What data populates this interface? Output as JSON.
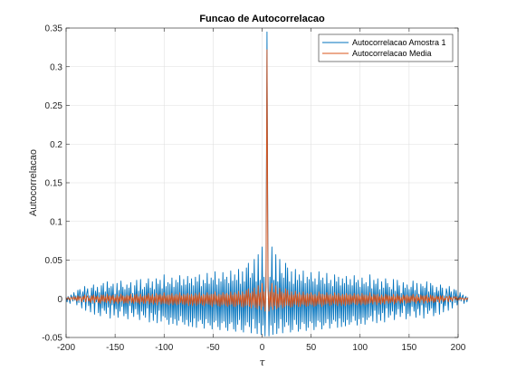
{
  "chart_data": {
    "type": "line",
    "title": "Funcao de Autocorrelacao",
    "xlabel": "τ",
    "ylabel": "Autocorrelacao",
    "xlim": [
      -200,
      200
    ],
    "ylim": [
      -0.05,
      0.35
    ],
    "xticks": [
      -200,
      -150,
      -100,
      -50,
      0,
      50,
      100,
      150,
      200
    ],
    "xtick_labels": [
      "-200",
      "-150",
      "-100",
      "-50",
      "0",
      "50",
      "100",
      "150",
      "200"
    ],
    "yticks": [
      -0.05,
      0,
      0.05,
      0.1,
      0.15,
      0.2,
      0.25,
      0.3,
      0.35
    ],
    "ytick_labels": [
      "-0.05",
      "0",
      "0.05",
      "0.1",
      "0.15",
      "0.2",
      "0.25",
      "0.3",
      "0.35"
    ],
    "grid": true,
    "legend_position": "top-right",
    "series": [
      {
        "name": "Autocorrelacao Amostra 1",
        "color": "#0072BD",
        "x_start": -200,
        "x_step": 1,
        "values": [
          0.002,
          -0.004,
          0.003,
          0.001,
          -0.006,
          0.005,
          0.002,
          -0.003,
          0.008,
          -0.002,
          0.004,
          -0.008,
          0.011,
          -0.005,
          0.012,
          0.003,
          -0.012,
          0.009,
          -0.004,
          0.016,
          -0.015,
          0.006,
          0.013,
          -0.009,
          0.004,
          -0.017,
          0.014,
          -0.006,
          0.018,
          -0.02,
          0.01,
          -0.004,
          0.015,
          -0.018,
          0.008,
          -0.022,
          0.017,
          -0.012,
          0.02,
          -0.015,
          0.009,
          -0.019,
          0.022,
          -0.011,
          0.014,
          -0.025,
          0.016,
          -0.008,
          0.019,
          -0.021,
          0.006,
          -0.013,
          0.02,
          -0.024,
          0.011,
          -0.016,
          0.023,
          -0.01,
          0.015,
          -0.022,
          0.012,
          -0.019,
          0.018,
          -0.026,
          0.014,
          -0.009,
          0.021,
          -0.018,
          0.007,
          -0.023,
          0.017,
          -0.013,
          0.024,
          -0.02,
          0.01,
          -0.027,
          0.025,
          -0.016,
          0.012,
          -0.021,
          0.015,
          -0.024,
          0.02,
          -0.012,
          0.026,
          -0.03,
          0.014,
          -0.018,
          0.022,
          -0.028,
          0.012,
          -0.02,
          0.026,
          -0.031,
          0.019,
          -0.015,
          0.024,
          -0.029,
          0.013,
          -0.022,
          0.031,
          -0.024,
          0.016,
          -0.027,
          0.021,
          -0.033,
          0.019,
          -0.024,
          0.027,
          -0.032,
          0.015,
          -0.026,
          0.024,
          -0.034,
          0.021,
          -0.028,
          0.03,
          -0.022,
          0.017,
          -0.03,
          0.025,
          -0.033,
          0.018,
          -0.027,
          0.029,
          -0.035,
          0.02,
          -0.03,
          0.026,
          -0.036,
          0.017,
          -0.025,
          0.028,
          -0.037,
          0.022,
          -0.029,
          0.031,
          -0.027,
          0.016,
          -0.032,
          0.024,
          -0.038,
          0.02,
          -0.026,
          0.033,
          -0.031,
          0.019,
          -0.034,
          0.027,
          -0.039,
          0.024,
          -0.03,
          0.035,
          -0.028,
          0.018,
          -0.036,
          0.026,
          -0.04,
          0.022,
          -0.031,
          0.034,
          -0.029,
          0.025,
          -0.037,
          0.028,
          -0.041,
          0.02,
          -0.032,
          0.036,
          -0.03,
          0.023,
          -0.039,
          0.031,
          -0.042,
          0.024,
          -0.033,
          0.038,
          -0.027,
          0.019,
          -0.04,
          0.035,
          -0.043,
          0.022,
          -0.034,
          0.04,
          -0.03,
          0.046,
          -0.036,
          0.027,
          -0.044,
          0.033,
          -0.026,
          0.051,
          -0.038,
          0.022,
          -0.045,
          0.057,
          -0.031,
          0.024,
          -0.046,
          0.067,
          -0.034,
          0.028,
          -0.048,
          0.038,
          0.345,
          0.038,
          -0.048,
          0.028,
          -0.034,
          0.067,
          -0.046,
          0.024,
          -0.031,
          0.057,
          -0.045,
          0.022,
          -0.038,
          0.051,
          -0.026,
          0.033,
          -0.044,
          0.027,
          -0.036,
          0.046,
          -0.03,
          0.04,
          -0.034,
          0.022,
          -0.043,
          0.035,
          -0.04,
          0.019,
          -0.027,
          0.038,
          -0.033,
          0.024,
          -0.042,
          0.031,
          -0.039,
          0.023,
          -0.03,
          0.036,
          -0.032,
          0.02,
          -0.041,
          0.028,
          -0.037,
          0.025,
          -0.029,
          0.034,
          -0.031,
          0.022,
          -0.04,
          0.026,
          -0.036,
          0.018,
          -0.028,
          0.035,
          -0.03,
          0.024,
          -0.039,
          0.027,
          -0.034,
          0.019,
          -0.031,
          0.033,
          -0.026,
          0.02,
          -0.038,
          0.024,
          -0.032,
          0.016,
          -0.027,
          0.031,
          -0.029,
          0.022,
          -0.037,
          0.028,
          -0.025,
          0.017,
          -0.036,
          0.026,
          -0.03,
          0.02,
          -0.035,
          0.029,
          -0.027,
          0.018,
          -0.033,
          0.025,
          -0.03,
          0.017,
          -0.022,
          0.03,
          -0.028,
          0.021,
          -0.034,
          0.024,
          -0.026,
          0.015,
          -0.032,
          0.027,
          -0.024,
          0.019,
          -0.033,
          0.021,
          -0.027,
          0.016,
          -0.024,
          0.031,
          -0.022,
          0.013,
          -0.029,
          0.024,
          -0.015,
          0.019,
          -0.031,
          0.026,
          -0.02,
          0.012,
          -0.028,
          0.022,
          -0.018,
          0.014,
          -0.03,
          0.026,
          -0.012,
          0.02,
          -0.024,
          0.015,
          -0.021,
          0.012,
          -0.016,
          0.025,
          -0.027,
          0.01,
          -0.02,
          0.024,
          -0.013,
          0.017,
          -0.023,
          0.007,
          -0.018,
          0.021,
          -0.009,
          0.014,
          -0.026,
          0.018,
          -0.019,
          0.012,
          -0.022,
          0.015,
          -0.01,
          0.023,
          -0.016,
          0.011,
          -0.024,
          0.02,
          -0.013,
          0.006,
          -0.021,
          0.019,
          -0.008,
          0.016,
          -0.025,
          0.014,
          -0.011,
          0.022,
          -0.019,
          0.009,
          -0.015,
          0.02,
          -0.012,
          0.017,
          -0.022,
          0.008,
          -0.018,
          0.015,
          -0.004,
          0.01,
          -0.02,
          0.018,
          -0.006,
          0.014,
          -0.017,
          0.004,
          -0.009,
          0.013,
          0.006,
          -0.015,
          0.016,
          -0.004,
          0.009,
          -0.012,
          0.003,
          0.012,
          -0.005,
          0.011,
          -0.008,
          0.004,
          -0.002,
          0.008,
          -0.003,
          0.002,
          0.005,
          -0.006,
          0.001,
          0.003,
          -0.004,
          0.002
        ]
      },
      {
        "name": "Autocorrelacao Media",
        "color": "#D95319",
        "x_start": -200,
        "x_step": 1,
        "values": [
          0.001,
          -0.001,
          0.002,
          0.0,
          -0.002,
          0.002,
          0.001,
          -0.001,
          0.003,
          -0.001,
          0.002,
          -0.003,
          0.004,
          -0.002,
          0.003,
          0.001,
          -0.004,
          0.003,
          -0.001,
          0.005,
          -0.004,
          0.002,
          0.004,
          -0.003,
          0.001,
          -0.005,
          0.004,
          -0.002,
          0.005,
          -0.005,
          0.003,
          -0.001,
          0.004,
          -0.005,
          0.002,
          -0.006,
          0.005,
          -0.003,
          0.005,
          -0.004,
          0.003,
          -0.005,
          0.006,
          -0.003,
          0.004,
          -0.006,
          0.004,
          -0.002,
          0.005,
          -0.006,
          0.002,
          -0.004,
          0.005,
          -0.006,
          0.003,
          -0.004,
          0.006,
          -0.003,
          0.004,
          -0.006,
          0.003,
          -0.005,
          0.005,
          -0.006,
          0.004,
          -0.003,
          0.006,
          -0.005,
          0.002,
          -0.006,
          0.005,
          -0.004,
          0.006,
          -0.005,
          0.003,
          -0.007,
          0.006,
          -0.004,
          0.003,
          -0.006,
          0.004,
          -0.006,
          0.005,
          -0.003,
          0.007,
          -0.007,
          0.004,
          -0.005,
          0.006,
          -0.007,
          0.003,
          -0.005,
          0.007,
          -0.008,
          0.005,
          -0.004,
          0.006,
          -0.007,
          0.004,
          -0.006,
          0.008,
          -0.006,
          0.004,
          -0.007,
          0.005,
          -0.008,
          0.005,
          -0.006,
          0.007,
          -0.008,
          0.004,
          -0.006,
          0.006,
          -0.008,
          0.005,
          -0.007,
          0.008,
          -0.005,
          0.004,
          -0.007,
          0.006,
          -0.008,
          0.005,
          -0.006,
          0.007,
          -0.009,
          0.005,
          -0.007,
          0.006,
          -0.009,
          0.004,
          -0.006,
          0.007,
          -0.009,
          0.005,
          -0.007,
          0.008,
          -0.006,
          0.004,
          -0.008,
          0.006,
          -0.009,
          0.005,
          -0.006,
          0.008,
          -0.007,
          0.005,
          -0.008,
          0.006,
          -0.01,
          0.006,
          -0.007,
          0.009,
          -0.007,
          0.004,
          -0.009,
          0.006,
          -0.01,
          0.005,
          -0.008,
          0.008,
          -0.007,
          0.006,
          -0.009,
          0.007,
          -0.01,
          0.005,
          -0.008,
          0.009,
          -0.007,
          0.005,
          -0.01,
          0.008,
          -0.01,
          0.006,
          -0.008,
          0.01,
          -0.007,
          0.005,
          -0.01,
          0.009,
          -0.011,
          0.006,
          -0.009,
          0.011,
          -0.008,
          0.013,
          -0.01,
          0.007,
          -0.012,
          0.009,
          -0.008,
          0.014,
          -0.011,
          0.006,
          -0.013,
          0.017,
          -0.009,
          0.008,
          -0.014,
          0.02,
          -0.01,
          0.009,
          -0.016,
          0.015,
          0.322,
          0.015,
          -0.016,
          0.009,
          -0.01,
          0.02,
          -0.014,
          0.008,
          -0.009,
          0.017,
          -0.013,
          0.006,
          -0.011,
          0.014,
          -0.008,
          0.009,
          -0.012,
          0.007,
          -0.01,
          0.013,
          -0.008,
          0.011,
          -0.009,
          0.005,
          -0.011,
          0.009,
          -0.01,
          0.005,
          -0.007,
          0.01,
          -0.008,
          0.006,
          -0.01,
          0.008,
          -0.01,
          0.005,
          -0.007,
          0.009,
          -0.008,
          0.005,
          -0.01,
          0.007,
          -0.009,
          0.006,
          -0.007,
          0.008,
          -0.008,
          0.005,
          -0.01,
          0.006,
          -0.009,
          0.004,
          -0.007,
          0.009,
          -0.007,
          0.006,
          -0.01,
          0.006,
          -0.008,
          0.005,
          -0.007,
          0.008,
          -0.006,
          0.005,
          -0.009,
          0.006,
          -0.008,
          0.004,
          -0.006,
          0.008,
          -0.007,
          0.005,
          -0.009,
          0.007,
          -0.006,
          0.004,
          -0.009,
          0.006,
          -0.007,
          0.005,
          -0.009,
          0.007,
          -0.007,
          0.005,
          -0.008,
          0.006,
          -0.007,
          0.004,
          -0.005,
          0.007,
          -0.007,
          0.005,
          -0.008,
          0.006,
          -0.006,
          0.004,
          -0.008,
          0.007,
          -0.006,
          0.005,
          -0.008,
          0.005,
          -0.007,
          0.004,
          -0.006,
          0.008,
          -0.005,
          0.003,
          -0.007,
          0.006,
          -0.004,
          0.005,
          -0.008,
          0.006,
          -0.005,
          0.003,
          -0.007,
          0.005,
          -0.005,
          0.003,
          -0.007,
          0.006,
          -0.003,
          0.005,
          -0.006,
          0.004,
          -0.005,
          0.003,
          -0.004,
          0.006,
          -0.007,
          0.003,
          -0.005,
          0.006,
          -0.003,
          0.004,
          -0.006,
          0.002,
          -0.005,
          0.005,
          -0.002,
          0.004,
          -0.006,
          0.005,
          -0.005,
          0.003,
          -0.005,
          0.004,
          -0.003,
          0.006,
          -0.004,
          0.003,
          -0.006,
          0.005,
          -0.003,
          0.002,
          -0.005,
          0.005,
          -0.002,
          0.004,
          -0.006,
          0.004,
          -0.003,
          0.005,
          -0.005,
          0.002,
          -0.004,
          0.005,
          -0.003,
          0.004,
          -0.005,
          0.002,
          -0.004,
          0.004,
          -0.001,
          0.003,
          -0.005,
          0.004,
          -0.002,
          0.004,
          -0.004,
          0.001,
          -0.002,
          0.003,
          0.002,
          -0.004,
          0.004,
          -0.001,
          0.002,
          -0.003,
          0.001,
          0.003,
          -0.001,
          0.003,
          -0.002,
          0.001,
          -0.001,
          0.002,
          -0.001,
          0.001,
          0.001,
          -0.002,
          0.0,
          0.001,
          -0.001,
          0.001
        ]
      }
    ]
  }
}
